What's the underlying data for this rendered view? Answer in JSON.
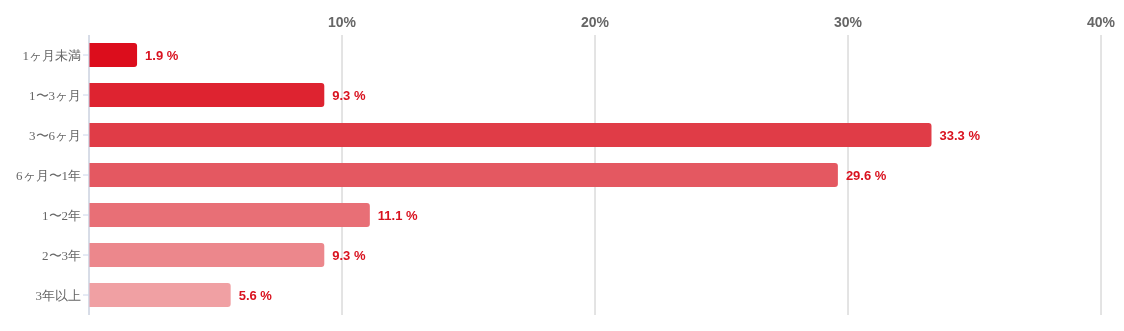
{
  "chart_data": {
    "type": "bar",
    "orientation": "horizontal",
    "categories": [
      "1ヶ月未満",
      "1〜3ヶ月",
      "3〜6ヶ月",
      "6ヶ月〜1年",
      "1〜2年",
      "2〜3年",
      "3年以上"
    ],
    "values": [
      1.9,
      9.3,
      33.3,
      29.6,
      11.1,
      9.3,
      5.6
    ],
    "value_labels": [
      "1.9 %",
      "9.3 %",
      "33.3 %",
      "29.6 %",
      "11.1 %",
      "9.3 %",
      "5.6 %"
    ],
    "colors": [
      "#dc0d1c",
      "#de2330",
      "#e03c47",
      "#e45861",
      "#e86f76",
      "#ec878c",
      "#f0a0a3"
    ],
    "xlim": [
      0,
      40
    ],
    "xticks": [
      {
        "value": 0,
        "label": null
      },
      {
        "value": 10,
        "label": "10%"
      },
      {
        "value": 20,
        "label": "20%"
      },
      {
        "value": 30,
        "label": "30%"
      },
      {
        "value": 40,
        "label": "40%"
      }
    ],
    "grid": "x"
  }
}
